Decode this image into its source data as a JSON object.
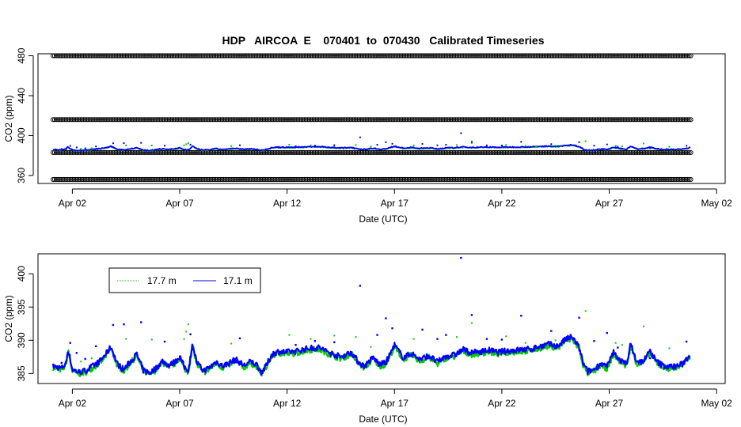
{
  "chart_data": [
    {
      "type": "scatter",
      "title": "HDP   AIRCOA  E    070401  to  070430   Calibrated Timeseries",
      "xlabel": "Date (UTC)",
      "ylabel": "CO2 (ppm)",
      "xlim": [
        -0.6,
        31.4
      ],
      "ylim": [
        352,
        482
      ],
      "x_ticks": [
        1,
        6,
        11,
        16,
        21,
        26,
        31
      ],
      "x_tick_labels": [
        "Apr 02",
        "Apr 07",
        "Apr 12",
        "Apr 17",
        "Apr 22",
        "Apr 27",
        "May 02"
      ],
      "y_ticks": [
        360,
        400,
        440,
        480
      ],
      "y_tick_labels": [
        "360",
        "400",
        "440",
        "480"
      ],
      "series": [
        {
          "kind": "calibration-markers",
          "color": "#000000",
          "levels": [
            356,
            383,
            416,
            480
          ],
          "x_range": [
            0.1,
            29.8
          ]
        },
        {
          "kind": "measurement",
          "color": "#00cc00",
          "x_range": [
            0.1,
            29.8
          ],
          "median": 388
        },
        {
          "kind": "measurement",
          "color": "#0000ff",
          "x_range": [
            0.1,
            29.8
          ],
          "median": 388
        }
      ],
      "grid": false,
      "legend": "none"
    },
    {
      "type": "line",
      "xlabel": "Date (UTC)",
      "ylabel": "CO2 (ppm)",
      "xlim": [
        -0.6,
        31.4
      ],
      "ylim": [
        383.5,
        403
      ],
      "x_ticks": [
        1,
        6,
        11,
        16,
        21,
        26,
        31
      ],
      "x_tick_labels": [
        "Apr 02",
        "Apr 07",
        "Apr 12",
        "Apr 17",
        "Apr 22",
        "Apr 27",
        "May 02"
      ],
      "y_ticks": [
        385,
        390,
        395,
        400
      ],
      "y_tick_labels": [
        "385",
        "390",
        "395",
        "400"
      ],
      "legend": "top-left",
      "series": [
        {
          "name": "17.7 m",
          "color": "#00cc00"
        },
        {
          "name": "17.1 m",
          "color": "#0000ff"
        }
      ],
      "profile": {
        "x": [
          0.1,
          0.5,
          0.7,
          0.8,
          1.0,
          1.3,
          1.6,
          2.0,
          2.3,
          2.6,
          2.8,
          3.1,
          3.4,
          3.7,
          4.0,
          4.3,
          4.6,
          4.9,
          5.2,
          5.5,
          5.8,
          6.0,
          6.2,
          6.4,
          6.6,
          6.8,
          7.1,
          7.4,
          7.7,
          8.0,
          8.3,
          8.6,
          9.0,
          9.3,
          9.6,
          9.8,
          10.0,
          10.3,
          10.6,
          11.0,
          11.5,
          12.0,
          12.5,
          13.0,
          13.5,
          14.0,
          14.3,
          14.6,
          15.0,
          15.3,
          15.6,
          16.0,
          16.4,
          16.8,
          17.2,
          17.6,
          18.0,
          18.4,
          18.8,
          19.2,
          19.6,
          20.0,
          20.4,
          20.8,
          21.2,
          21.6,
          22.0,
          22.4,
          22.8,
          23.2,
          23.6,
          24.0,
          24.3,
          24.6,
          24.8,
          25.0,
          25.3,
          25.6,
          25.9,
          26.2,
          26.5,
          26.8,
          27.0,
          27.3,
          27.6,
          27.9,
          28.2,
          28.5,
          28.8,
          29.1,
          29.4,
          29.8
        ],
        "y": [
          386.1,
          385.8,
          386.5,
          388.7,
          385.6,
          385.2,
          385.4,
          386.2,
          386.9,
          388.1,
          389.0,
          386.4,
          385.6,
          386.8,
          387.9,
          385.5,
          385.1,
          385.8,
          386.9,
          386.2,
          386.8,
          387.6,
          386.0,
          385.5,
          389.4,
          386.6,
          385.4,
          385.9,
          386.8,
          386.1,
          386.6,
          387.1,
          386.2,
          386.8,
          386.3,
          385.2,
          386.0,
          387.9,
          388.3,
          388.2,
          388.4,
          388.8,
          388.9,
          388.1,
          387.5,
          388.2,
          386.8,
          386.1,
          387.4,
          386.4,
          386.6,
          389.3,
          387.4,
          388.0,
          387.1,
          387.7,
          386.7,
          387.6,
          387.8,
          388.6,
          388.1,
          388.3,
          388.5,
          388.2,
          388.4,
          388.5,
          388.6,
          388.7,
          389.1,
          389.4,
          389.1,
          390.2,
          390.4,
          388.9,
          386.4,
          385.3,
          385.6,
          386.5,
          386.0,
          388.2,
          387.0,
          386.4,
          389.4,
          386.6,
          386.9,
          388.4,
          386.8,
          386.2,
          386.0,
          386.1,
          386.4,
          388.0
        ]
      },
      "spikes_17_7m": [
        [
          1.4,
          386.8
        ],
        [
          1.9,
          387.3
        ],
        [
          3.5,
          390.2
        ],
        [
          4.7,
          390.1
        ],
        [
          6.2,
          390.2
        ],
        [
          6.3,
          391.3
        ],
        [
          6.4,
          392.4
        ],
        [
          8.4,
          389.5
        ],
        [
          11.1,
          390.8
        ],
        [
          12.1,
          390.2
        ],
        [
          13.2,
          390.7
        ],
        [
          14.2,
          390.5
        ],
        [
          14.9,
          389.0
        ],
        [
          16.9,
          390.2
        ],
        [
          18.9,
          390.5
        ],
        [
          19.6,
          392.6
        ],
        [
          21.2,
          390.6
        ],
        [
          22.1,
          389.6
        ],
        [
          22.6,
          388.6
        ],
        [
          23.5,
          390.0
        ],
        [
          24.9,
          394.4
        ],
        [
          26.3,
          389.6
        ],
        [
          26.6,
          389.3
        ],
        [
          27.6,
          392.1
        ],
        [
          28.8,
          388.8
        ]
      ],
      "spikes_17_1m": [
        [
          0.5,
          386.6
        ],
        [
          0.9,
          389.6
        ],
        [
          1.2,
          388.1
        ],
        [
          1.6,
          387.2
        ],
        [
          2.1,
          389.1
        ],
        [
          2.9,
          392.3
        ],
        [
          3.4,
          392.4
        ],
        [
          4.2,
          392.7
        ],
        [
          5.3,
          389.8
        ],
        [
          6.5,
          390.9
        ],
        [
          8.8,
          390.3
        ],
        [
          11.4,
          389.3
        ],
        [
          12.3,
          389.9
        ],
        [
          13.2,
          389.7
        ],
        [
          14.4,
          398.2
        ],
        [
          15.2,
          390.8
        ],
        [
          15.6,
          393.3
        ],
        [
          15.9,
          391.8
        ],
        [
          17.3,
          391.6
        ],
        [
          18.0,
          390.2
        ],
        [
          18.4,
          390.8
        ],
        [
          19.1,
          402.4
        ],
        [
          19.6,
          393.8
        ],
        [
          20.3,
          390.2
        ],
        [
          21.0,
          390.1
        ],
        [
          21.9,
          393.7
        ],
        [
          23.3,
          391.4
        ],
        [
          24.2,
          390.8
        ],
        [
          24.6,
          393.4
        ],
        [
          25.3,
          389.9
        ],
        [
          25.9,
          391.1
        ],
        [
          26.4,
          388.9
        ],
        [
          27.9,
          387.3
        ],
        [
          29.6,
          389.8
        ]
      ]
    }
  ]
}
